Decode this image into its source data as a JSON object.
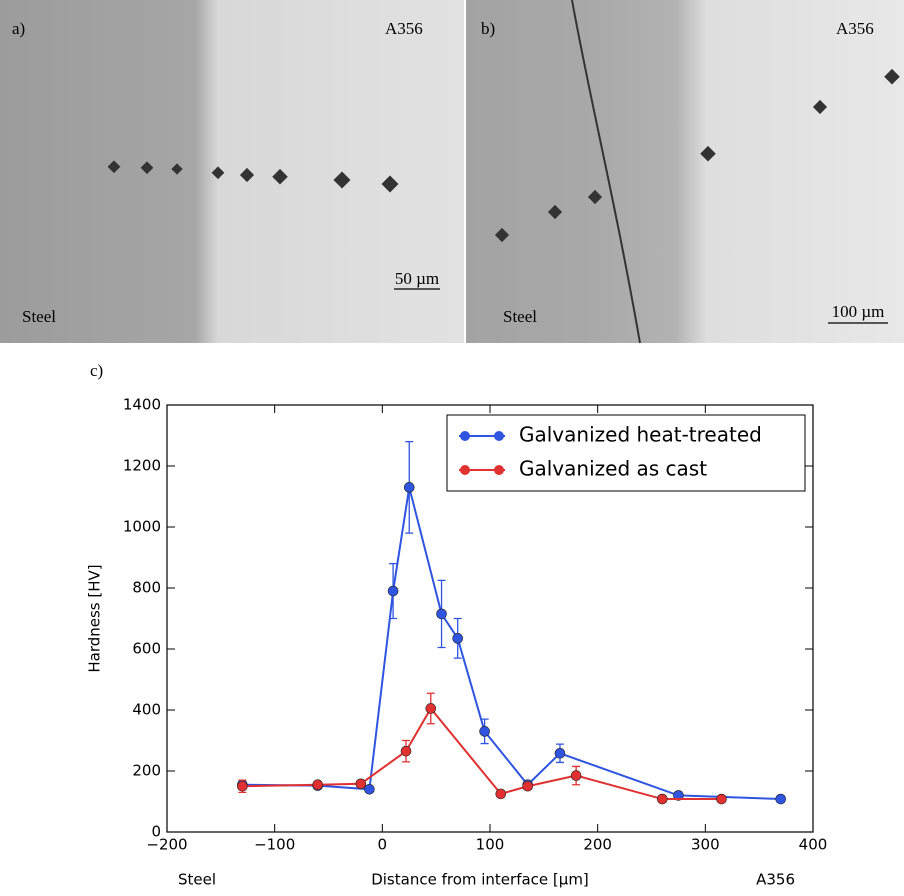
{
  "panels": [
    {
      "label": "a)",
      "material_top": "A356",
      "material_bottom": "Steel",
      "scale": "50 µm"
    },
    {
      "label": "b)",
      "material_top": "A356",
      "material_bottom": "Steel",
      "scale": "100 µm"
    }
  ],
  "panel_c_label": "c)",
  "chart_data": {
    "type": "line",
    "xlabel": "Distance from interface [μm]",
    "ylabel": "Hardness [HV]",
    "x_left_note": "Steel",
    "x_right_note": "A356",
    "xlim": [
      -200,
      400
    ],
    "xticks": [
      {
        "value": -200,
        "label": "−200"
      },
      {
        "value": -100,
        "label": "−100"
      },
      0,
      100,
      200,
      300,
      400
    ],
    "ylim": [
      0,
      1400
    ],
    "yticks": [
      0,
      200,
      400,
      600,
      800,
      1000,
      1200,
      1400
    ],
    "legend": "upper right",
    "series": [
      {
        "name": "Galvanized heat-treated",
        "color": "#2f55e0",
        "x": [
          -130,
          -60,
          -12,
          10,
          25,
          55,
          70,
          95,
          135,
          165,
          275,
          370
        ],
        "values": [
          155,
          152,
          140,
          790,
          1130,
          715,
          635,
          330,
          155,
          258,
          120,
          108
        ],
        "errors": [
          10,
          10,
          10,
          90,
          150,
          110,
          65,
          40,
          10,
          30,
          10,
          10
        ]
      },
      {
        "name": "Galvanized as cast",
        "color": "#e03030",
        "x": [
          -130,
          -60,
          -20,
          22,
          45,
          110,
          135,
          180,
          260,
          315
        ],
        "values": [
          150,
          155,
          158,
          265,
          405,
          125,
          150,
          185,
          108,
          108
        ],
        "errors": [
          20,
          10,
          10,
          35,
          50,
          10,
          10,
          30,
          10,
          10
        ]
      }
    ]
  }
}
